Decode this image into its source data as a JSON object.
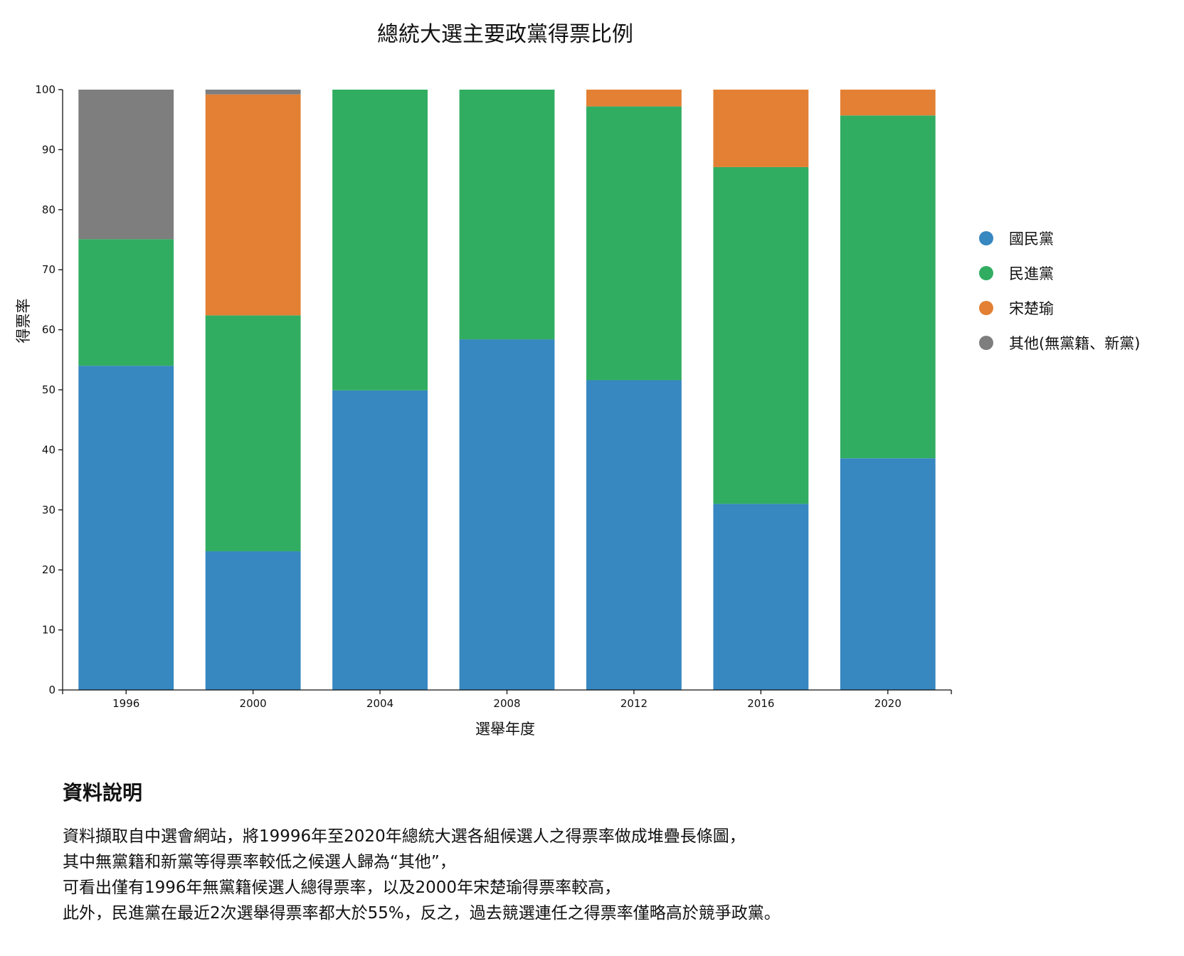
{
  "chart_data": {
    "type": "bar",
    "stacked": true,
    "title": "總統大選主要政黨得票比例",
    "xlabel": "選舉年度",
    "ylabel": "得票率",
    "ylim": [
      0,
      100
    ],
    "yticks": [
      0,
      10,
      20,
      30,
      40,
      50,
      60,
      70,
      80,
      90,
      100
    ],
    "categories": [
      "1996",
      "2000",
      "2004",
      "2008",
      "2012",
      "2016",
      "2020"
    ],
    "legend_position": "right",
    "grid": false,
    "series": [
      {
        "name": "國民黨",
        "color": "#3787c0",
        "values": [
          54.0,
          23.1,
          49.9,
          58.4,
          51.6,
          31.0,
          38.6
        ]
      },
      {
        "name": "民進黨",
        "color": "#31ad62",
        "values": [
          21.1,
          39.3,
          50.1,
          41.6,
          45.6,
          56.1,
          57.1
        ]
      },
      {
        "name": "宋楚瑜",
        "color": "#e38033",
        "values": [
          0,
          36.8,
          0,
          0,
          2.8,
          12.9,
          4.3
        ]
      },
      {
        "name": "其他(無黨籍、新黨)",
        "color": "#7e7e7e",
        "values": [
          24.9,
          0.8,
          0,
          0,
          0,
          0,
          0
        ]
      }
    ]
  },
  "notes": {
    "heading": "資料說明",
    "lines": [
      "資料擷取自中選會網站，將19996年至2020年總統大選各組候選人之得票率做成堆疊長條圖，",
      "其中無黨籍和新黨等得票率較低之候選人歸為“其他”，",
      "可看出僅有1996年無黨籍候選人總得票率，以及2000年宋楚瑜得票率較高，",
      "此外，民進黨在最近2次選舉得票率都大於55%，反之，過去競選連任之得票率僅略高於競爭政黨。"
    ]
  }
}
